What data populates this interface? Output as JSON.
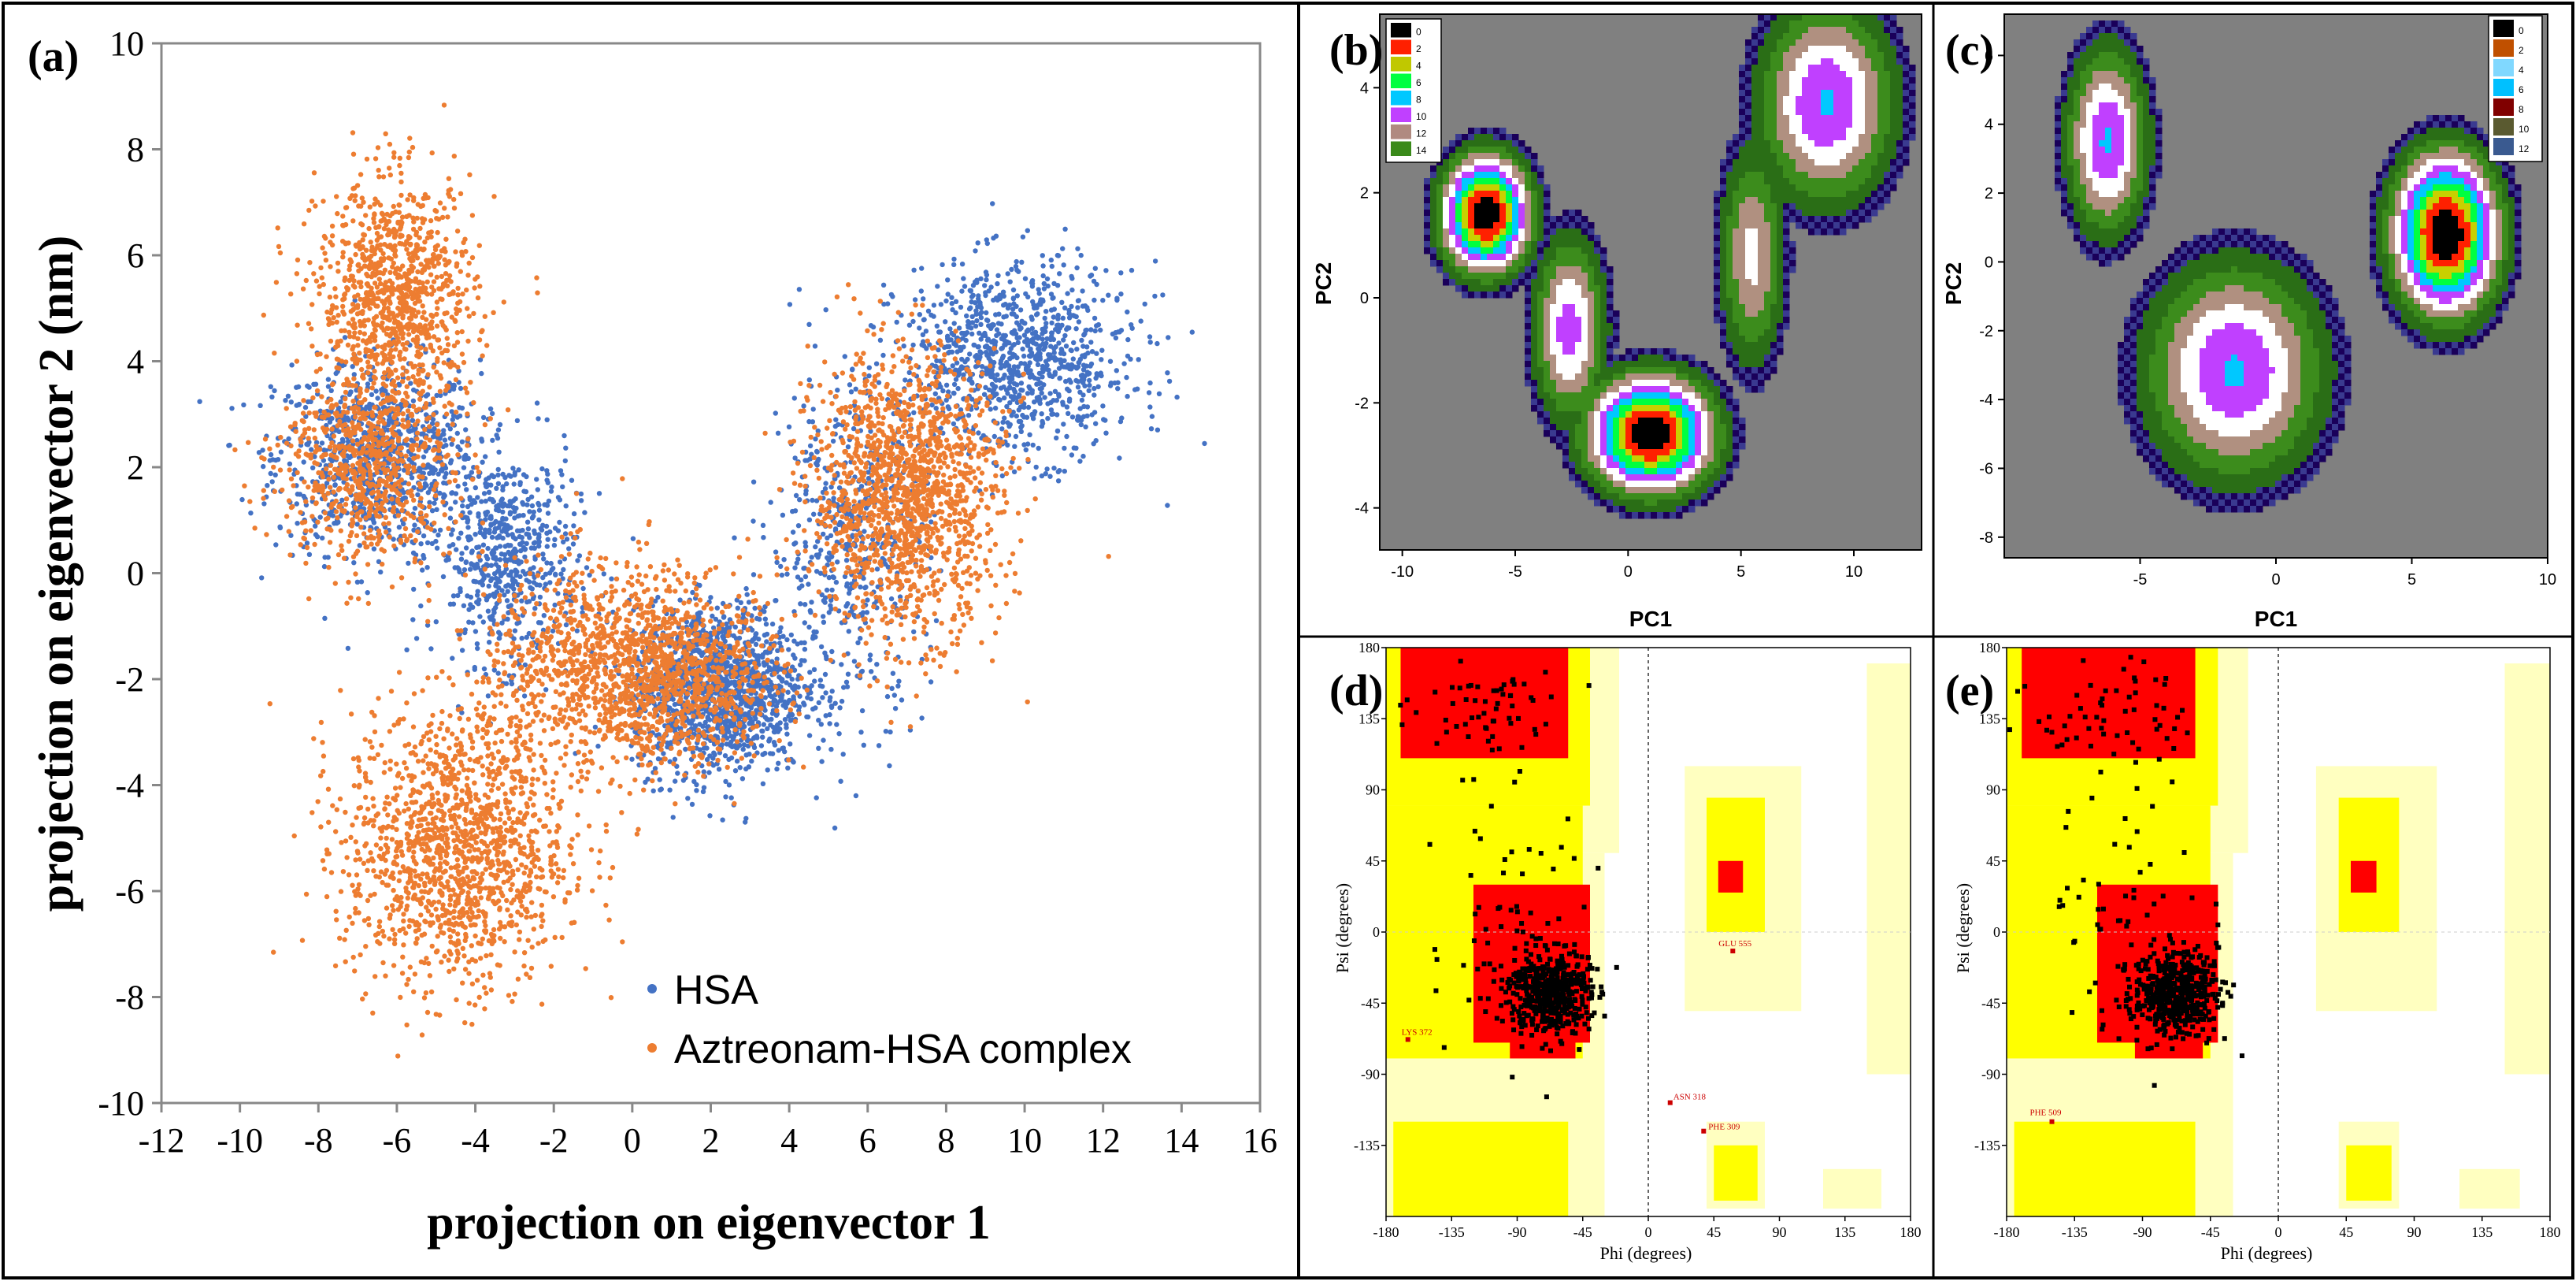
{
  "panels": {
    "a": {
      "label": "(a)"
    },
    "b": {
      "label": "(b)"
    },
    "c": {
      "label": "(c)"
    },
    "d": {
      "label": "(d)"
    },
    "e": {
      "label": "(e)"
    }
  },
  "colors": {
    "hsa": "#4472c4",
    "complex": "#ed7d31",
    "ramachandran_core": "#ff0000",
    "ramachandran_allowed": "#ffff00",
    "ramachandran_generous": "#ffffc0",
    "fel_background": "#808080"
  },
  "chart_data": [
    {
      "id": "a",
      "type": "scatter",
      "title": "",
      "xlabel": "projection on eigenvector 1",
      "ylabel": "projection on eigenvector 2 (nm)",
      "xlim": [
        -12,
        16
      ],
      "ylim": [
        -10,
        10
      ],
      "xticks": [
        "-12",
        "-10",
        "-8",
        "-6",
        "-4",
        "-2",
        "0",
        "2",
        "4",
        "6",
        "8",
        "10",
        "12",
        "14",
        "16"
      ],
      "yticks": [
        "-10",
        "-8",
        "-6",
        "-4",
        "-2",
        "0",
        "2",
        "4",
        "6",
        "8",
        "10"
      ],
      "legend_position": "bottom-right",
      "grid": false,
      "series": [
        {
          "name": "HSA",
          "color": "#4472c4",
          "clusters": [
            {
              "cx": -6.5,
              "cy": 2.2,
              "sx": 1.3,
              "sy": 0.9,
              "n": 900
            },
            {
              "cx": -3.2,
              "cy": 0.3,
              "sx": 0.9,
              "sy": 1.0,
              "n": 600
            },
            {
              "cx": 2.2,
              "cy": -2.2,
              "sx": 1.1,
              "sy": 0.8,
              "n": 1300
            },
            {
              "cx": 9.8,
              "cy": 4.0,
              "sx": 1.5,
              "sy": 0.9,
              "n": 1000
            },
            {
              "cx": 5.5,
              "cy": 0.5,
              "sx": 1.0,
              "sy": 1.6,
              "n": 500
            }
          ]
        },
        {
          "name": "Aztreonam-HSA complex",
          "color": "#ed7d31",
          "clusters": [
            {
              "cx": -6.0,
              "cy": 5.2,
              "sx": 1.0,
              "sy": 1.1,
              "n": 1000
            },
            {
              "cx": -6.8,
              "cy": 2.0,
              "sx": 1.1,
              "sy": 0.9,
              "n": 700
            },
            {
              "cx": -4.5,
              "cy": -5.2,
              "sx": 1.4,
              "sy": 1.3,
              "n": 1400
            },
            {
              "cx": -0.8,
              "cy": -1.8,
              "sx": 1.5,
              "sy": 1.0,
              "n": 1000
            },
            {
              "cx": 7.0,
              "cy": 1.5,
              "sx": 1.2,
              "sy": 1.3,
              "n": 1500
            },
            {
              "cx": 1.5,
              "cy": -2.0,
              "sx": 1.2,
              "sy": 0.8,
              "n": 600
            }
          ]
        }
      ]
    },
    {
      "id": "b",
      "type": "heatmap",
      "xlabel": "PC1",
      "ylabel": "PC2",
      "xlim": [
        -11,
        13
      ],
      "ylim": [
        -4.8,
        5.4
      ],
      "xticks": [
        "-10",
        "-5",
        "0",
        "5",
        "10"
      ],
      "yticks": [
        "-4",
        "-2",
        "0",
        "2",
        "4"
      ],
      "legend_levels": [
        "0",
        "2",
        "4",
        "6",
        "8",
        "10",
        "12",
        "14"
      ],
      "legend_colors": [
        "#000000",
        "#ff2000",
        "#c0c800",
        "#00ff40",
        "#00c8ff",
        "#c040ff",
        "#b08a80",
        "#3a8a1a",
        "#1a005a",
        "#3a6080"
      ],
      "legend_position": "top-left",
      "basins": [
        {
          "cx": -6.3,
          "cy": 1.6,
          "sx": 1.4,
          "sy": 0.8,
          "depth": 1.0
        },
        {
          "cx": 1.0,
          "cy": -2.6,
          "sx": 2.0,
          "sy": 0.8,
          "depth": 1.0
        },
        {
          "cx": 8.8,
          "cy": 3.7,
          "sx": 2.2,
          "sy": 1.4,
          "depth": 0.6
        },
        {
          "cx": -2.6,
          "cy": -0.6,
          "sx": 1.2,
          "sy": 1.3,
          "depth": 0.55
        },
        {
          "cx": 5.5,
          "cy": 0.8,
          "sx": 1.1,
          "sy": 1.6,
          "depth": 0.45
        }
      ]
    },
    {
      "id": "c",
      "type": "heatmap",
      "xlabel": "PC1",
      "ylabel": "PC2",
      "xlim": [
        -10,
        10
      ],
      "ylim": [
        -8.6,
        7.2
      ],
      "xticks": [
        "-5",
        "0",
        "5",
        "10"
      ],
      "yticks": [
        "-8",
        "-6",
        "-4",
        "-2",
        "0",
        "2",
        "4",
        "6"
      ],
      "legend_levels": [
        "0",
        "2",
        "4",
        "6",
        "8",
        "10",
        "12"
      ],
      "legend_colors": [
        "#000000",
        "#c05000",
        "#80d8ff",
        "#00c0ff",
        "#800000",
        "#5a5a30",
        "#3a5a90"
      ],
      "legend_position": "top-right",
      "basins": [
        {
          "cx": -6.2,
          "cy": 3.5,
          "sx": 1.1,
          "sy": 2.0,
          "depth": 0.6
        },
        {
          "cx": 6.3,
          "cy": 0.8,
          "sx": 1.4,
          "sy": 1.7,
          "depth": 1.0
        },
        {
          "cx": -1.5,
          "cy": -3.2,
          "sx": 2.4,
          "sy": 2.3,
          "depth": 0.6
        }
      ]
    },
    {
      "id": "d",
      "type": "scatter",
      "xlabel": "Phi (degrees)",
      "ylabel": "Psi (degrees)",
      "xlim": [
        -180,
        180
      ],
      "ylim": [
        -180,
        180
      ],
      "xticks": [
        "-180",
        "-135",
        "-90",
        "-45",
        "0",
        "45",
        "90",
        "135",
        "180"
      ],
      "yticks": [
        "-135",
        "-90",
        "-45",
        "0",
        "45",
        "90",
        "135",
        "180"
      ],
      "annotations": [
        "GLU 555",
        "LYS 372",
        "ASN 318",
        "PHE 309"
      ]
    },
    {
      "id": "e",
      "type": "scatter",
      "xlabel": "Phi (degrees)",
      "ylabel": "Psi (degrees)",
      "xlim": [
        -180,
        180
      ],
      "ylim": [
        -180,
        180
      ],
      "xticks": [
        "-180",
        "-135",
        "-90",
        "-45",
        "0",
        "45",
        "90",
        "135",
        "180"
      ],
      "yticks": [
        "-135",
        "-90",
        "-45",
        "0",
        "45",
        "90",
        "135",
        "180"
      ],
      "annotations": [
        "PHE 509"
      ]
    }
  ]
}
